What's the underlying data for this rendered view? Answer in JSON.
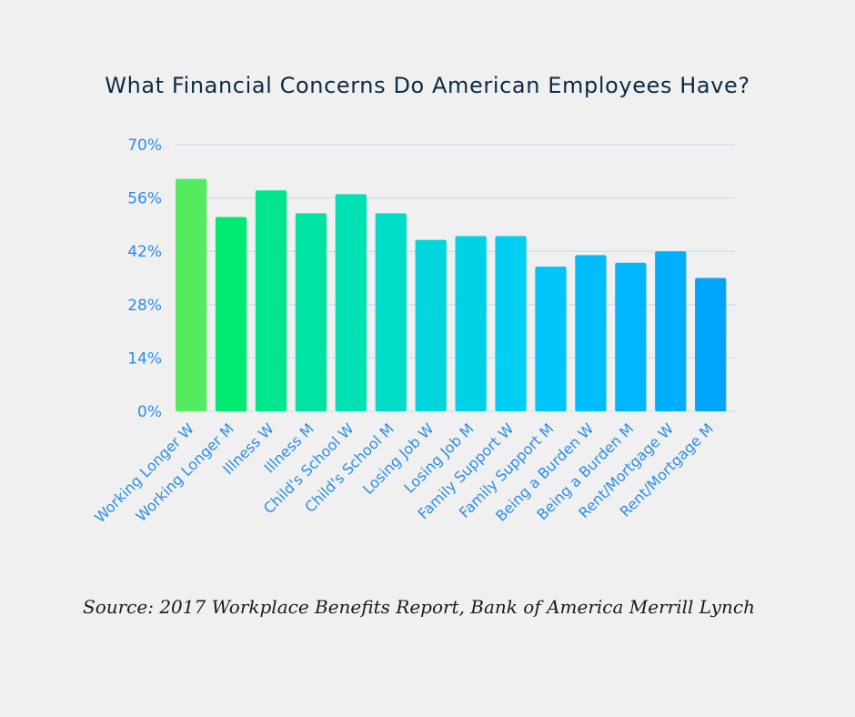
{
  "chart_data": {
    "type": "bar",
    "title": "What Financial Concerns Do American Employees Have?",
    "xlabel": "",
    "ylabel": "",
    "ylim": [
      0,
      70
    ],
    "yticks": [
      "0%",
      "14%",
      "28%",
      "42%",
      "56%",
      "70%"
    ],
    "ytick_values": [
      0,
      14,
      28,
      42,
      56,
      70
    ],
    "grid": true,
    "legend": "none",
    "categories": [
      "Working Longer W",
      "Working Longer M",
      "Illness W",
      "Illness M",
      "Child's School W",
      "Child's School M",
      "Losing Job W",
      "Losing Job M",
      "Family Support W",
      "Family Support M",
      "Being a Burden W",
      "Being a Burden M",
      "Rent/Mortgage W",
      "Rent/Mortgage M"
    ],
    "values": [
      61,
      51,
      58,
      52,
      57,
      52,
      45,
      46,
      46,
      38,
      41,
      39,
      42,
      35
    ],
    "unit": "%",
    "bar_colors": [
      "#55eb61",
      "#00ea72",
      "#00e68e",
      "#00e3a2",
      "#00e2b6",
      "#00dcc8",
      "#00d6db",
      "#00d2e6",
      "#00cef2",
      "#00c5fb",
      "#00bdfd",
      "#00b6fe",
      "#00aefe",
      "#00a6fc"
    ],
    "gridline_color": "#cfe0f3",
    "tick_color": "#2a8cf0"
  },
  "title": "What Financial Concerns Do American Employees Have?",
  "source": "Source: 2017 Workplace Benefits Report, Bank of America Merrill Lynch"
}
